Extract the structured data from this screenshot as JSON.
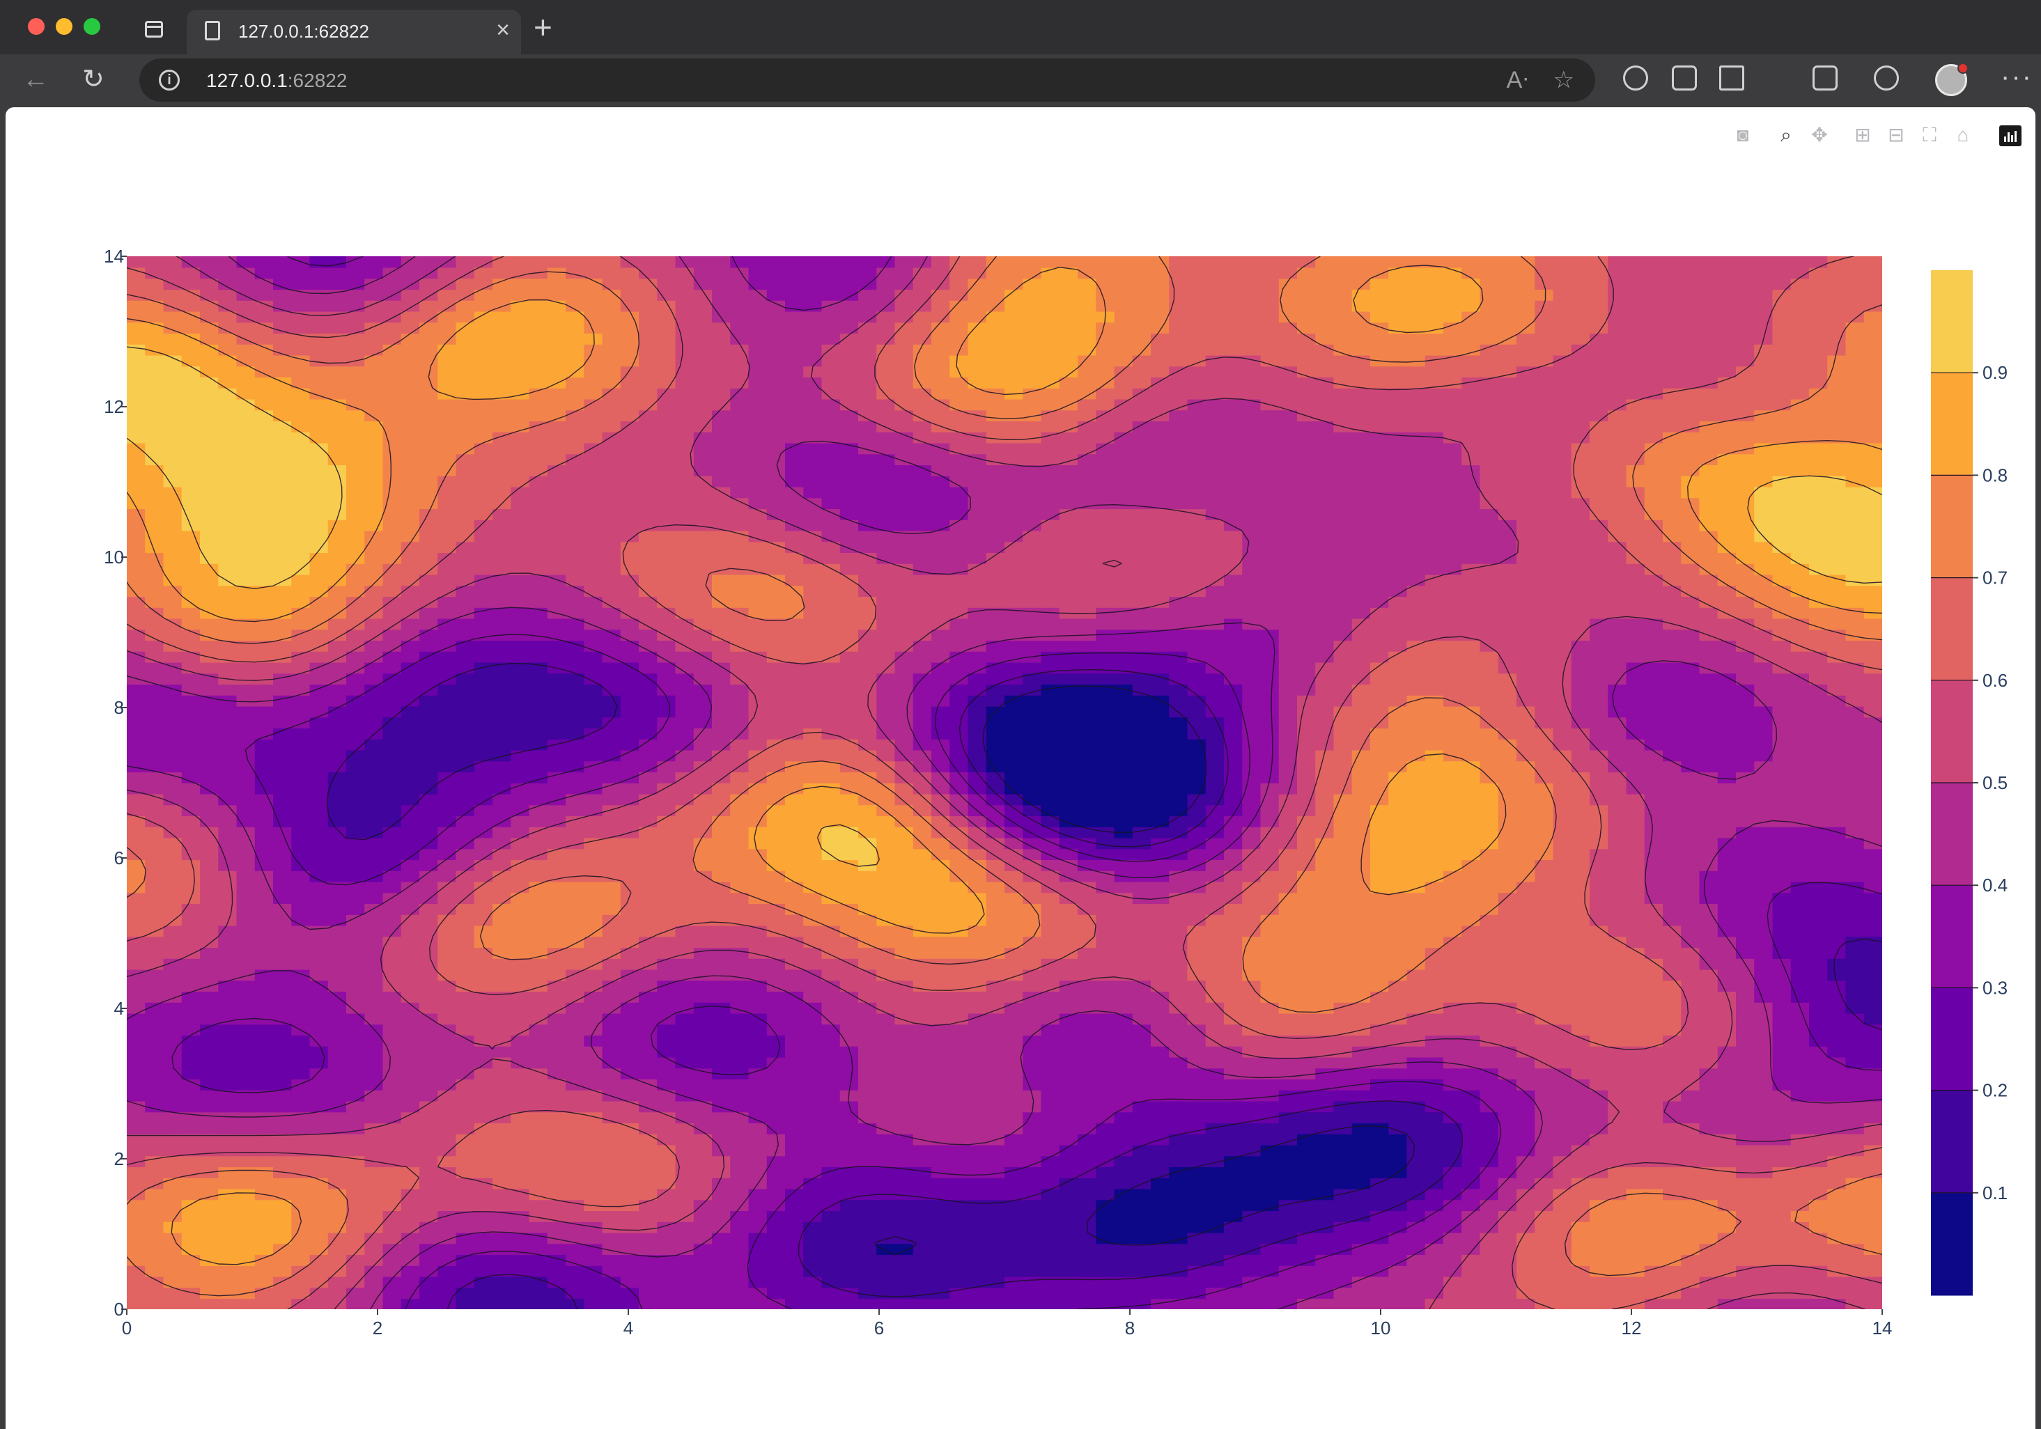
{
  "browser": {
    "tab_title": "127.0.0.1:62822",
    "url_host": "127.0.0.1",
    "url_port": ":62822"
  },
  "modebar": {
    "buttons": [
      "camera-icon",
      "zoom-icon",
      "pan-icon",
      "zoom-in-icon",
      "zoom-out-icon",
      "autoscale-icon",
      "reset-axes-icon",
      "plotly-logo"
    ]
  },
  "colors": {
    "levels": [
      "#0d0887",
      "#41049d",
      "#6a00a8",
      "#8f0da4",
      "#b12a90",
      "#cc4778",
      "#e16462",
      "#f2844b",
      "#fca636",
      "#f7cc4f",
      "#f0f921"
    ]
  },
  "chart_data": {
    "type": "contour",
    "title": "",
    "xlabel": "",
    "ylabel": "",
    "xlim": [
      0,
      14
    ],
    "ylim": [
      0,
      14
    ],
    "xticks": [
      "0",
      "2",
      "4",
      "6",
      "8",
      "10",
      "12",
      "14"
    ],
    "yticks": [
      "0",
      "2",
      "4",
      "6",
      "8",
      "10",
      "12",
      "14"
    ],
    "colorscale": "Plasma",
    "colorbar": {
      "range": [
        0,
        1
      ],
      "ticks": [
        "0.1",
        "0.2",
        "0.3",
        "0.4",
        "0.5",
        "0.6",
        "0.7",
        "0.8",
        "0.9"
      ]
    },
    "contour_step": 0.1,
    "peaks": [
      {
        "x": 3,
        "y": 13,
        "z": 0.95
      },
      {
        "x": 1,
        "y": 9,
        "z": 0.95
      },
      {
        "x": 1.2,
        "y": 10.9,
        "z": 0.88
      },
      {
        "x": 7,
        "y": 12.2,
        "z": 0.95
      },
      {
        "x": 5.8,
        "y": 6.6,
        "z": 0.96
      },
      {
        "x": 5,
        "y": 9.5,
        "z": 0.85
      },
      {
        "x": 3,
        "y": 5.3,
        "z": 0.93
      },
      {
        "x": 7,
        "y": 5.1,
        "z": 0.86
      },
      {
        "x": 8.1,
        "y": 10,
        "z": 0.86
      },
      {
        "x": 10.4,
        "y": 13.2,
        "z": 0.93
      },
      {
        "x": 7.1,
        "y": 14,
        "z": 0.85
      },
      {
        "x": 9,
        "y": 4,
        "z": 0.92
      },
      {
        "x": 11.2,
        "y": 9.3,
        "z": 0.78
      },
      {
        "x": 11,
        "y": 7.1,
        "z": 0.78
      },
      {
        "x": 9.9,
        "y": 6,
        "z": 0.75
      },
      {
        "x": 12.5,
        "y": 4.3,
        "z": 0.88
      },
      {
        "x": 12.2,
        "y": 1,
        "z": 0.96
      },
      {
        "x": 14,
        "y": 1.3,
        "z": 0.9
      },
      {
        "x": 1,
        "y": 1.2,
        "z": 0.92
      },
      {
        "x": 3.8,
        "y": 1.9,
        "z": 0.83
      },
      {
        "x": 13,
        "y": 11.2,
        "z": 0.92
      },
      {
        "x": 14,
        "y": 9.9,
        "z": 0.86
      },
      {
        "x": 0,
        "y": 12.5,
        "z": 0.92
      },
      {
        "x": 11,
        "y": 11.2,
        "z": 0.74
      },
      {
        "x": 9.6,
        "y": 8.4,
        "z": 0.72
      },
      {
        "x": 12,
        "y": 12,
        "z": 0.72
      },
      {
        "x": 7,
        "y": 1.9,
        "z": 0.72
      },
      {
        "x": 0,
        "y": 6,
        "z": 0.8
      },
      {
        "x": 14,
        "y": 12.7,
        "z": 0.82
      }
    ],
    "troughs": [
      {
        "x": 2,
        "y": 6,
        "z": 0.05
      },
      {
        "x": 2.2,
        "y": 8.3,
        "z": 0.2
      },
      {
        "x": 7.2,
        "y": 7.5,
        "z": 0.05
      },
      {
        "x": 8,
        "y": 6.8,
        "z": 0.05
      },
      {
        "x": 8,
        "y": 3.9,
        "z": 0.08
      },
      {
        "x": 4.5,
        "y": 3.5,
        "z": 0.18
      },
      {
        "x": 10,
        "y": 2.2,
        "z": 0.05
      },
      {
        "x": 8,
        "y": 1.3,
        "z": 0.05
      },
      {
        "x": 6,
        "y": 1,
        "z": 0.06
      },
      {
        "x": 3,
        "y": 0.2,
        "z": 0.08
      },
      {
        "x": 1.8,
        "y": 14,
        "z": 0.15
      },
      {
        "x": 6,
        "y": 14,
        "z": 0.15
      },
      {
        "x": 6,
        "y": 10.9,
        "z": 0.18
      },
      {
        "x": 8,
        "y": 11.2,
        "z": 0.18
      },
      {
        "x": 11,
        "y": 12,
        "z": 0.12
      },
      {
        "x": 13,
        "y": 12,
        "z": 0.12
      },
      {
        "x": 11.2,
        "y": 10,
        "z": 0.2
      },
      {
        "x": 9,
        "y": 9,
        "z": 0.15
      },
      {
        "x": 4,
        "y": 8.1,
        "z": 0.18
      },
      {
        "x": 12,
        "y": 8,
        "z": 0.2
      },
      {
        "x": 13,
        "y": 5,
        "z": 0.18
      },
      {
        "x": 0.2,
        "y": 8,
        "z": 0.15
      },
      {
        "x": 14,
        "y": 4,
        "z": 0.18
      },
      {
        "x": 1,
        "y": 3.1,
        "z": 0.2
      },
      {
        "x": 13,
        "y": 2,
        "z": 0.25
      },
      {
        "x": 13,
        "y": 0.2,
        "z": 0.2
      }
    ]
  }
}
